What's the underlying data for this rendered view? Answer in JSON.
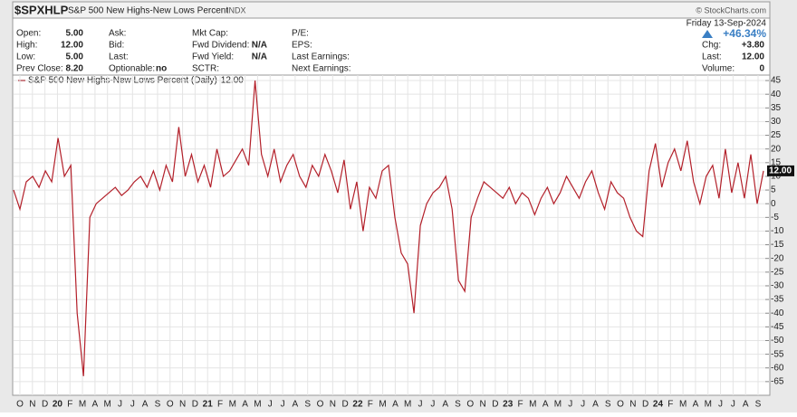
{
  "header": {
    "symbol": "$SPXHLP",
    "name": "S&P 500 New Highs-New Lows Percent",
    "exchange": "INDX",
    "source": "© StockCharts.com",
    "date": "Friday 13-Sep-2024",
    "change_pct": "+46.34%",
    "columns": [
      [
        [
          "Open:",
          "5.00"
        ],
        [
          "High:",
          "12.00"
        ],
        [
          "Low:",
          "5.00"
        ],
        [
          "Prev Close:",
          "8.20"
        ]
      ],
      [
        [
          "Ask:",
          ""
        ],
        [
          "Bid:",
          ""
        ],
        [
          "Last:",
          ""
        ],
        [
          "Optionable:",
          "no"
        ]
      ],
      [
        [
          "Mkt Cap:",
          ""
        ],
        [
          "Fwd Dividend:",
          "N/A"
        ],
        [
          "Fwd Yield:",
          "N/A"
        ],
        [
          "SCTR:",
          ""
        ]
      ],
      [
        [
          "P/E:",
          ""
        ],
        [
          "EPS:",
          ""
        ],
        [
          "Last Earnings:",
          ""
        ],
        [
          "Next Earnings:",
          ""
        ]
      ]
    ],
    "right": [
      [
        "Chg:",
        "+3.80"
      ],
      [
        "Last:",
        "12.00"
      ],
      [
        "Volume:",
        "0"
      ]
    ]
  },
  "chart_data": {
    "type": "line",
    "x_labels": [
      "O",
      "N",
      "D",
      "20",
      "F",
      "M",
      "A",
      "M",
      "J",
      "J",
      "A",
      "S",
      "O",
      "N",
      "D",
      "21",
      "F",
      "M",
      "A",
      "M",
      "J",
      "J",
      "A",
      "S",
      "O",
      "N",
      "D",
      "22",
      "F",
      "M",
      "A",
      "M",
      "J",
      "J",
      "A",
      "S",
      "O",
      "N",
      "D",
      "23",
      "F",
      "M",
      "A",
      "M",
      "J",
      "J",
      "A",
      "S",
      "O",
      "N",
      "D",
      "24",
      "F",
      "M",
      "A",
      "M",
      "J",
      "J",
      "A",
      "S"
    ],
    "series": [
      {
        "name": "S&P 500 New Highs-New Lows Percent (Daily)",
        "color": "#b3202a",
        "values": [
          5,
          -2,
          8,
          10,
          6,
          12,
          8,
          24,
          10,
          14,
          -40,
          -63,
          -5,
          0,
          2,
          4,
          6,
          3,
          5,
          8,
          10,
          6,
          12,
          5,
          14,
          8,
          28,
          10,
          18,
          8,
          14,
          6,
          20,
          10,
          12,
          16,
          20,
          14,
          45,
          18,
          10,
          20,
          8,
          14,
          18,
          10,
          6,
          14,
          10,
          18,
          12,
          4,
          16,
          -2,
          8,
          -10,
          6,
          2,
          12,
          14,
          -5,
          -18,
          -22,
          -40,
          -8,
          0,
          4,
          6,
          10,
          -2,
          -28,
          -32,
          -5,
          2,
          8,
          6,
          4,
          2,
          6,
          0,
          4,
          2,
          -4,
          2,
          6,
          0,
          4,
          10,
          6,
          2,
          8,
          12,
          4,
          -2,
          8,
          4,
          2,
          -5,
          -10,
          -12,
          12,
          22,
          6,
          15,
          20,
          12,
          23,
          8,
          0,
          10,
          14,
          2,
          20,
          4,
          15,
          2,
          18,
          0,
          12
        ]
      }
    ],
    "current_value": {
      "value": 12,
      "label": "12.00"
    },
    "ylim": [
      -70,
      47
    ],
    "yticks": [
      45,
      40,
      35,
      30,
      25,
      20,
      15,
      10,
      5,
      0,
      -5,
      -10,
      -15,
      -20,
      -25,
      -30,
      -35,
      -40,
      -45,
      -50,
      -55,
      -60,
      -65
    ],
    "grid": true
  }
}
